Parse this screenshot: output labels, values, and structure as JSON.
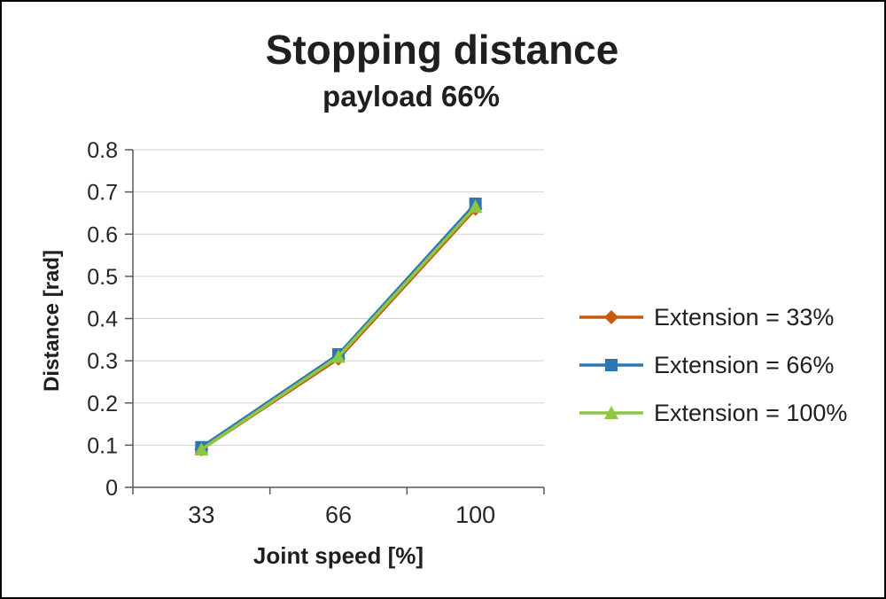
{
  "title": "Stopping distance",
  "subtitle": "payload 66%",
  "chart_data": {
    "type": "line",
    "x_categories": [
      "33",
      "66",
      "100"
    ],
    "xlabel": "Joint speed [%]",
    "ylabel": "Distance [rad]",
    "ylim": [
      0,
      0.8
    ],
    "yticks": [
      "0",
      "0.1",
      "0.2",
      "0.3",
      "0.4",
      "0.5",
      "0.6",
      "0.7",
      "0.8"
    ],
    "grid": true,
    "legend_position": "right",
    "colors": {
      "grid": "#D2D2D2",
      "axis": "#595959",
      "text": "#1F1F1F"
    },
    "series": [
      {
        "name": "Extension = 33%",
        "marker": "diamond",
        "color": "#C55A11",
        "values": [
          0.09,
          0.305,
          0.66
        ]
      },
      {
        "name": "Extension = 66%",
        "marker": "square",
        "color": "#2E75B6",
        "values": [
          0.095,
          0.315,
          0.672
        ]
      },
      {
        "name": "Extension = 100%",
        "marker": "triangle",
        "color": "#8DC63F",
        "values": [
          0.09,
          0.31,
          0.665
        ]
      }
    ]
  }
}
